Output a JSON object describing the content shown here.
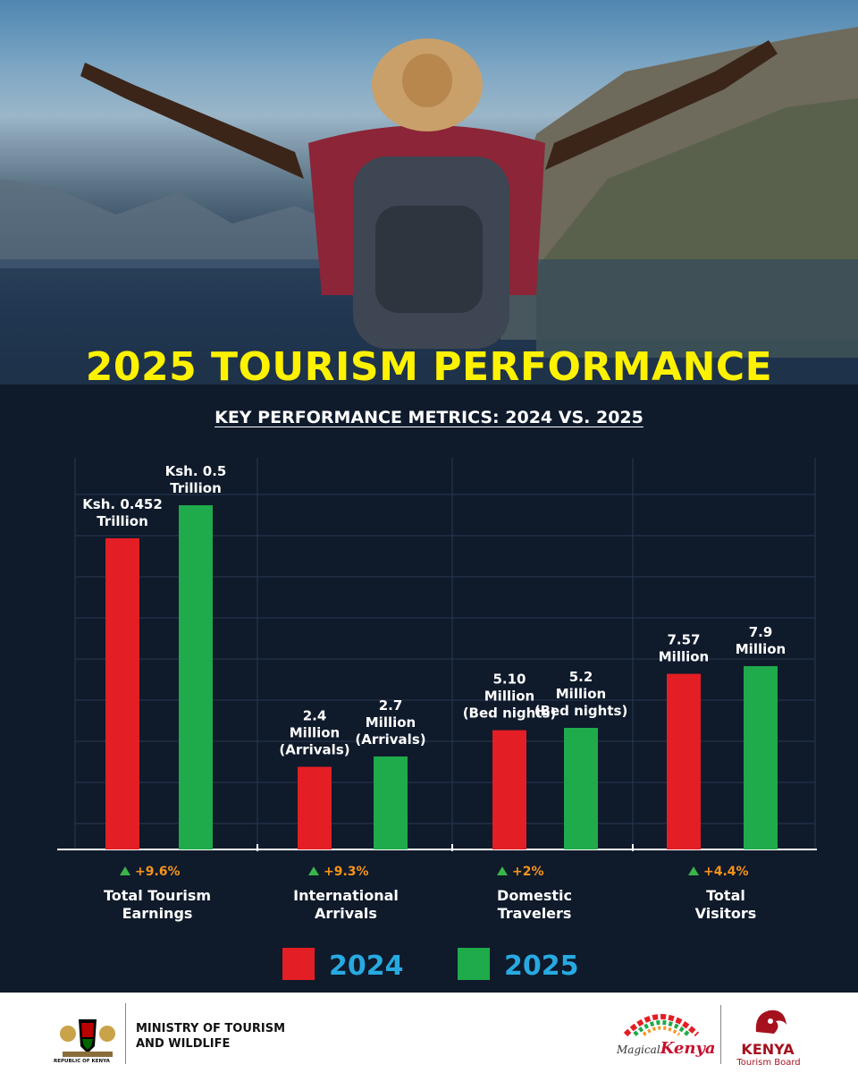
{
  "title": "2025 TOURISM PERFORMANCE",
  "subtitle": "KEY PERFORMANCE METRICS: 2024 VS. 2025",
  "chart_data": {
    "type": "bar",
    "categories": [
      "Total Tourism Earnings",
      "International Arrivals",
      "Domestic Travelers",
      "Total Visitors"
    ],
    "category_lines": [
      [
        "Total Tourism",
        "Earnings"
      ],
      [
        "International",
        "Arrivals"
      ],
      [
        "Domestic",
        "Travelers"
      ],
      [
        "Total",
        "Visitors"
      ]
    ],
    "series": [
      {
        "name": "2024",
        "color": "#e31e24",
        "values": [
          0.452,
          2.4,
          5.1,
          7.57
        ],
        "labels": [
          [
            "Ksh. 0.452",
            "Trillion"
          ],
          [
            "2.4",
            "Million",
            "(Arrivals)"
          ],
          [
            "5.10",
            "Million",
            "(Bed nights)"
          ],
          [
            "7.57",
            "Million"
          ]
        ]
      },
      {
        "name": "2025",
        "color": "#1faa4b",
        "values": [
          0.5,
          2.7,
          5.2,
          7.9
        ],
        "labels": [
          [
            "Ksh. 0.5",
            "Trillion"
          ],
          [
            "2.7",
            "Million",
            "(Arrivals)"
          ],
          [
            "5.2",
            "Million",
            "(Bed nights)"
          ],
          [
            "7.9",
            "Million"
          ]
        ]
      }
    ],
    "changes": [
      "+9.6%",
      "+9.3%",
      "+2%",
      "+4.4%"
    ],
    "units": [
      "Trillion Ksh",
      "Million arrivals",
      "Million bed nights",
      "Million visitors"
    ],
    "grid": true,
    "legend_position": "bottom",
    "change_color": "#f7941d",
    "up_arrow_color": "#39b54a",
    "legend_text_color": "#27aae1"
  },
  "footer": {
    "ministry_line1": "MINISTRY OF TOURISM",
    "ministry_line2": "AND WILDLIFE",
    "emblem_caption": "REPUBLIC OF KENYA",
    "magical_prefix": "Magical",
    "magical_brand": "Kenya",
    "board_title": "KENYA",
    "board_sub": "Tourism Board"
  }
}
